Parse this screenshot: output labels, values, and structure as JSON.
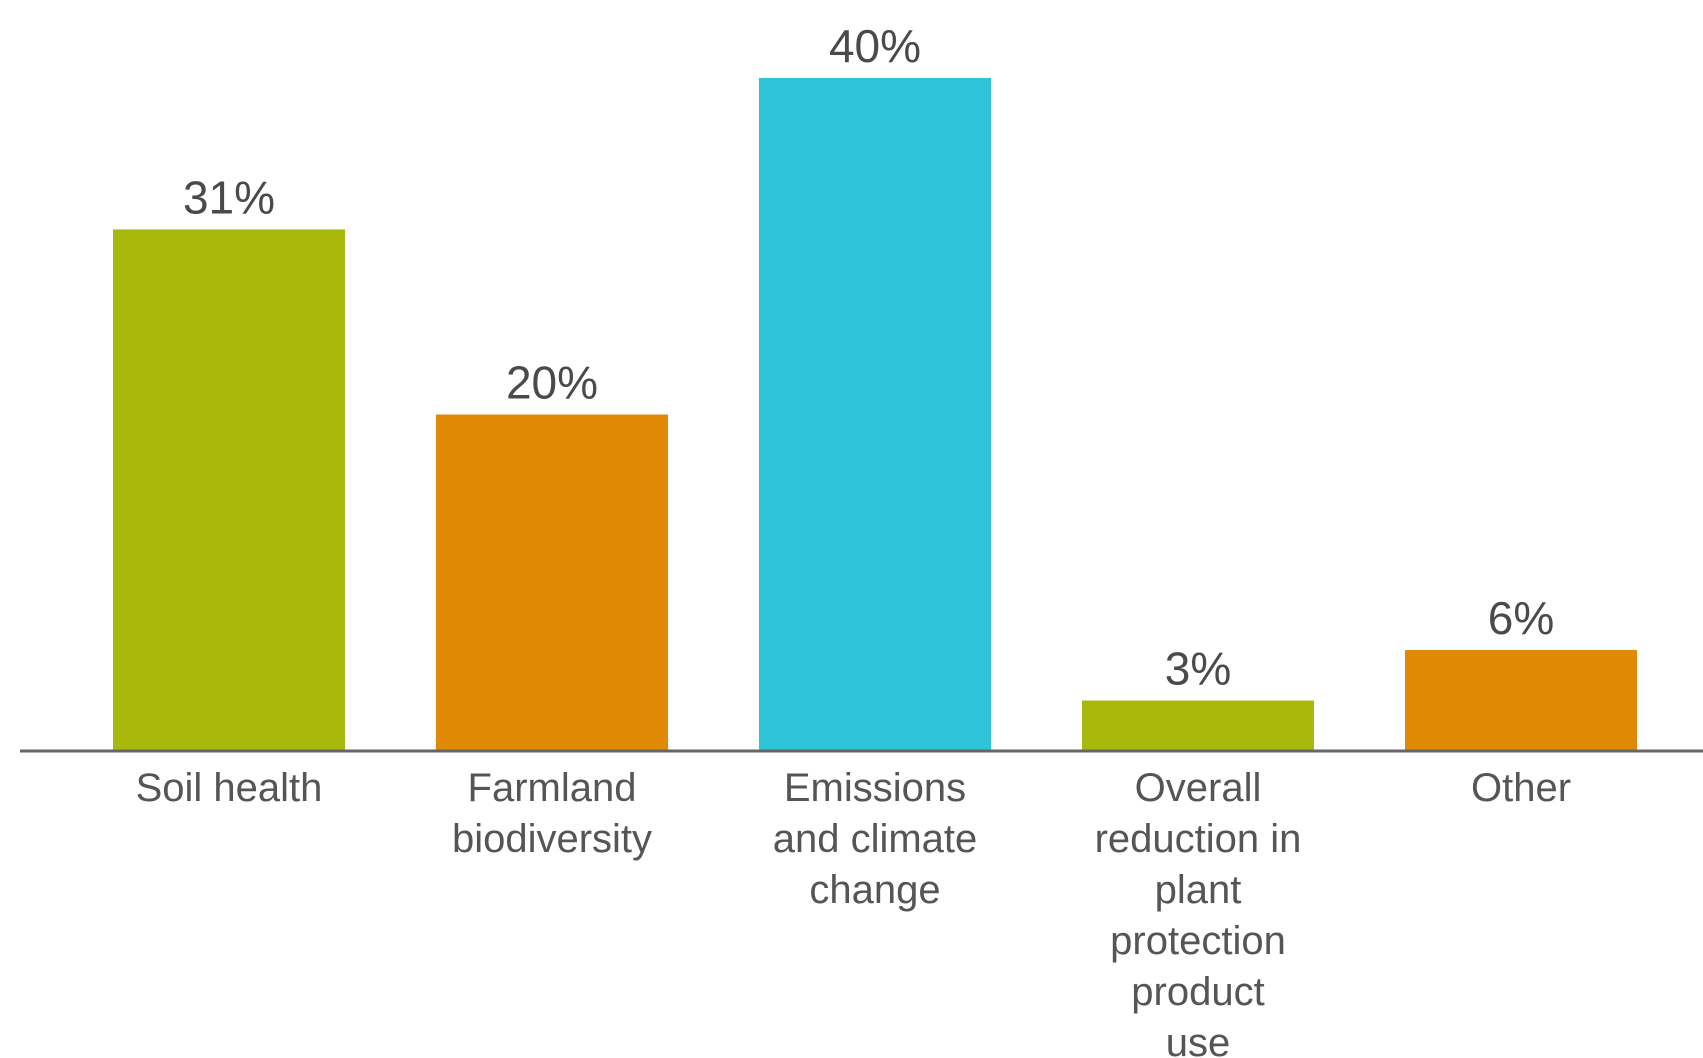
{
  "chart_data": {
    "type": "bar",
    "categories": [
      "Soil health",
      "Farmland biodiversity",
      "Emissions and climate change",
      "Overall reduction in plant protection product use",
      "Other"
    ],
    "category_label_lines": [
      [
        "Soil health"
      ],
      [
        "Farmland",
        "biodiversity"
      ],
      [
        "Emissions",
        "and climate",
        "change"
      ],
      [
        "Overall",
        "reduction in",
        "plant",
        "protection",
        "product",
        "use"
      ],
      [
        "Other"
      ]
    ],
    "values": [
      31,
      20,
      40,
      3,
      6
    ],
    "value_labels": [
      "31%",
      "20%",
      "40%",
      "3%",
      "6%"
    ],
    "bar_colors": [
      "#a9b90c",
      "#e08904",
      "#2cc4d6",
      "#a9b90c",
      "#e08904"
    ],
    "axis_color": "#666666",
    "ylim": [
      0,
      40
    ],
    "grid": false,
    "legend": "none"
  }
}
